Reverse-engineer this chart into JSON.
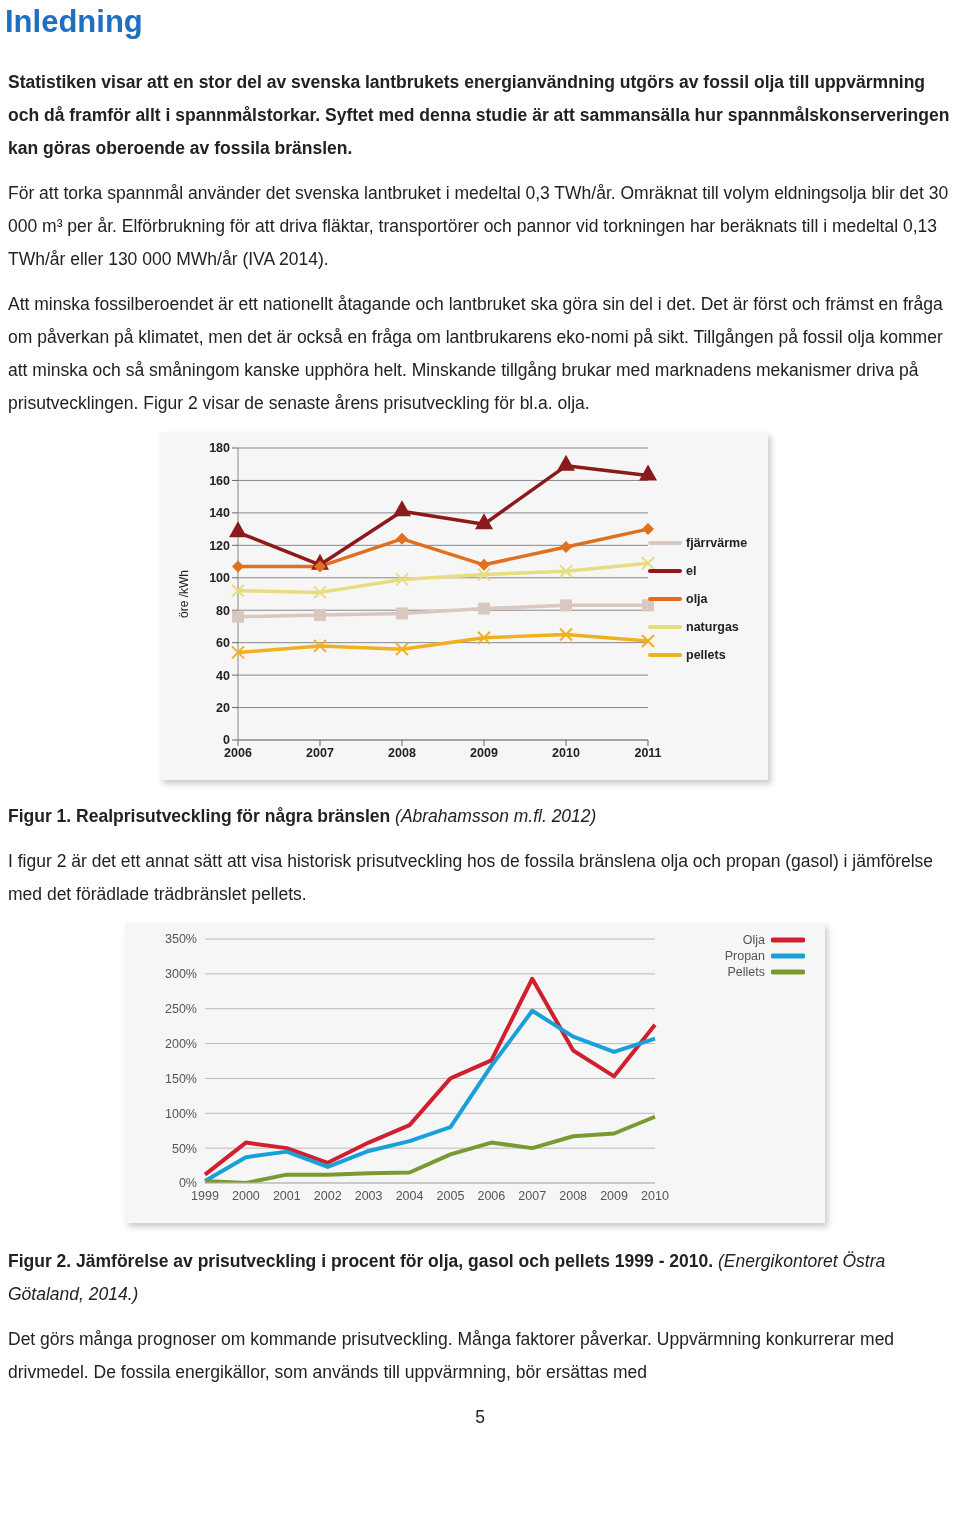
{
  "chart_data": [
    {
      "type": "line",
      "title": "Figur 1. Realprisutveckling för några bränslen",
      "subtitle": "(Abrahamsson m.fl. 2012)",
      "annotations": [
        "Inledning",
        "Statistiken visar att en stor del av svenska lantbrukets energianvändning utgörs av fossil olja till uppvärmning och då framför allt i spannmålstorkar. Syftet med denna studie är att sammansälla hur spannmålskonserveringen kan göras oberoende av fossila bränslen.",
        "För att torka spannmål använder det svenska lantbruket i medeltal 0,3 TWh/år. Omräknat till volym eldningsolja blir det 30 000 m³ per år. Elförbrukning för att driva fläktar, transportörer och pannor vid torkningen har beräknats till i medeltal 0,13 TWh/år eller 130 000 MWh/år (IVA 2014).",
        "Att minska fossilberoendet är ett nationellt åtagande och lantbruket ska göra sin del i det. Det är först och främst en fråga om påverkan på klimatet, men det är också en fråga om lantbrukarens eko-nomi på sikt. Tillgången på fossil olja kommer att minska och så småningom kanske upphöra helt. Minskande tillgång brukar med marknadens mekanismer driva på prisutvecklingen.  Figur 2 visar de senaste årens prisutveckling för bl.a. olja."
      ],
      "ylabel": "öre /kWh",
      "categories": [
        "2006",
        "2007",
        "2008",
        "2009",
        "2010",
        "2011"
      ],
      "series": [
        {
          "name": "fjärrvärme",
          "color": "#d9c8bf",
          "marker": "square",
          "values": [
            76,
            77,
            78,
            81,
            83,
            83
          ]
        },
        {
          "name": "el",
          "color": "#8b1a1a",
          "marker": "triangle",
          "values": [
            128,
            108,
            141,
            133,
            169,
            163
          ]
        },
        {
          "name": "olja",
          "color": "#e07020",
          "marker": "diamond",
          "values": [
            107,
            107,
            124,
            108,
            119,
            130
          ]
        },
        {
          "name": "naturgas",
          "color": "#e8dc80",
          "marker": "cross",
          "values": [
            92,
            91,
            99,
            102,
            104,
            109
          ]
        },
        {
          "name": "pellets",
          "color": "#f0b020",
          "marker": "cross",
          "values": [
            54,
            58,
            56,
            63,
            65,
            61
          ]
        }
      ],
      "ylim": [
        0,
        180
      ],
      "yticks": [
        0,
        20,
        40,
        60,
        80,
        100,
        120,
        140,
        160,
        180
      ],
      "grid": "y",
      "legend": "right",
      "line_style": "solid"
    },
    {
      "type": "line",
      "title": "Figur 2. Jämförelse av prisutveckling i procent för olja, gasol och pellets 1999 - 2010.",
      "subtitle": "(Energikontoret Östra Götaland, 2014.)",
      "annotations": [
        "I figur 2 är det ett annat sätt att visa  historisk prisutveckling hos de fossila bränslena olja och propan (gasol) i jämförelse med det förädlade trädbränslet pellets.",
        "Det görs många prognoser om kommande prisutveckling. Många faktorer påverkar. Uppvärmning konkurrerar med drivmedel. De fossila energikällor, som används till uppvärmning, bör ersättas med",
        "5"
      ],
      "categories": [
        "1999",
        "2000",
        "2001",
        "2002",
        "2003",
        "2004",
        "2005",
        "2006",
        "2007",
        "2008",
        "2009",
        "2010"
      ],
      "series": [
        {
          "name": "Olja",
          "color": "#d0202e",
          "values": [
            12,
            58,
            50,
            29,
            58,
            83,
            150,
            176,
            293,
            190,
            153,
            227
          ]
        },
        {
          "name": "Propan",
          "color": "#1aa0d8",
          "values": [
            3,
            37,
            45,
            23,
            46,
            60,
            80,
            168,
            247,
            210,
            188,
            207
          ]
        },
        {
          "name": "Pellets",
          "color": "#7a9a30",
          "values": [
            3,
            0,
            12,
            12,
            14,
            15,
            41,
            58,
            50,
            67,
            71,
            95
          ]
        }
      ],
      "ylim": [
        0,
        350
      ],
      "yticks": [
        {
          "value": 0,
          "label": "0%"
        },
        {
          "value": 50,
          "label": "50%"
        },
        {
          "value": 100,
          "label": "100%"
        },
        {
          "value": 150,
          "label": "150%"
        },
        {
          "value": 200,
          "label": "200%"
        },
        {
          "value": 250,
          "label": "250%"
        },
        {
          "value": 300,
          "label": "300%"
        },
        {
          "value": 350,
          "label": "350%"
        }
      ],
      "grid": "y",
      "legend": "top right",
      "marker": "none",
      "line_style": "solid"
    }
  ]
}
